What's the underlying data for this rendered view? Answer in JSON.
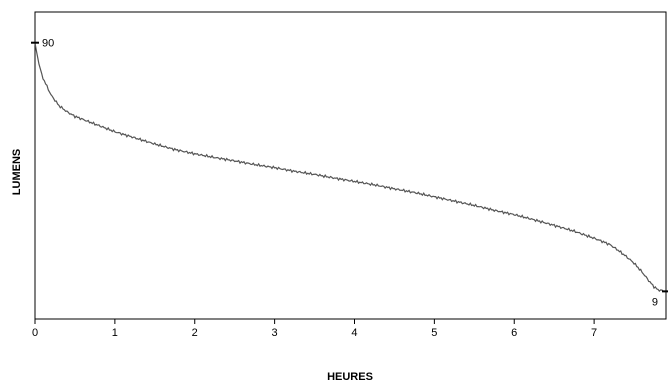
{
  "chart_data": {
    "type": "line",
    "title": "",
    "xlabel": "HEURES",
    "ylabel": "LUMENS",
    "xlim": [
      0,
      7.9
    ],
    "ylim": [
      0,
      100
    ],
    "x_ticks": [
      0,
      1,
      2,
      3,
      4,
      5,
      6,
      7
    ],
    "y_ticks_visible": false,
    "grid": false,
    "legend": "none",
    "line_color": "#555555",
    "series": [
      {
        "x": [
          0,
          0.02,
          0.05,
          0.1,
          0.2,
          0.3,
          0.4,
          0.5,
          0.75,
          1.0,
          1.25,
          1.5,
          1.75,
          2.0,
          2.25,
          2.5,
          2.75,
          3.0,
          3.25,
          3.5,
          3.75,
          4.0,
          4.25,
          4.5,
          4.75,
          5.0,
          5.25,
          5.5,
          5.75,
          6.0,
          6.25,
          6.5,
          6.75,
          7.0,
          7.1,
          7.2,
          7.3,
          7.4,
          7.5,
          7.6,
          7.7,
          7.75,
          7.8,
          7.9
        ],
        "values": [
          90,
          87,
          83,
          78.5,
          73,
          69.5,
          67.5,
          66,
          63.5,
          61,
          59,
          57,
          55.2,
          53.8,
          52.6,
          51.5,
          50.3,
          49.3,
          48.1,
          47.1,
          45.9,
          44.8,
          43.7,
          42.4,
          41.2,
          39.8,
          38.4,
          37,
          35.4,
          34,
          32.3,
          30.5,
          28.6,
          26.3,
          25.3,
          24.2,
          22.4,
          20.4,
          18.2,
          15.3,
          12,
          10.5,
          9.5,
          9
        ]
      }
    ],
    "annotations": [
      {
        "text": "90",
        "x": 0,
        "y": 90
      },
      {
        "text": "9",
        "x": 7.9,
        "y": 9
      }
    ]
  }
}
